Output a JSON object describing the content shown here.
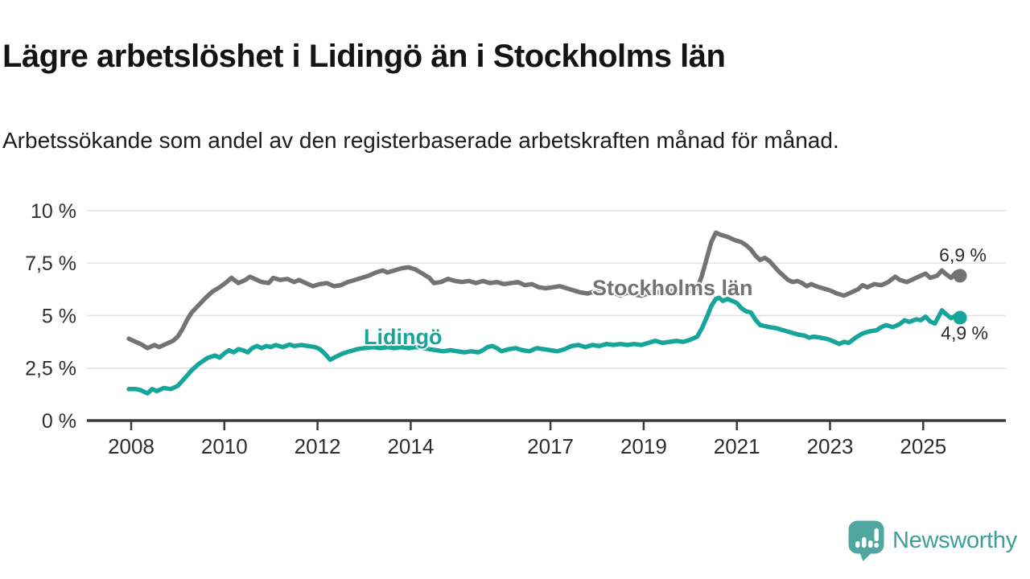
{
  "header": {
    "title": "Lägre arbetslöshet i Lidingö än i Stockholms län",
    "subtitle": "Arbetssökande som andel av den registerbaserade arbetskraften månad för månad."
  },
  "footer": {
    "brand": "Newsworthy",
    "logo_icon": "speech-bubble-bar-chart",
    "logo_bubble_color": "#4fa7a0",
    "wordmark_color": "#3f9e99"
  },
  "chart_data": {
    "type": "line",
    "title": "Lägre arbetslöshet i Lidingö än i Stockholms län",
    "subtitle": "Arbetssökande som andel av den registerbaserade arbetskraften månad för månad.",
    "grid_color": "#e2e2e2",
    "axis_color": "#3b3b3b",
    "tick_text_color": "#2e2e2e",
    "legend_position": "inline-labels-on-lines",
    "x_axis": {
      "range": [
        2007.1,
        2026.8
      ],
      "grid": false,
      "ticks": [
        {
          "v": 2008,
          "label": "2008"
        },
        {
          "v": 2010,
          "label": "2010"
        },
        {
          "v": 2012,
          "label": "2012"
        },
        {
          "v": 2014,
          "label": "2014"
        },
        {
          "v": 2017,
          "label": "2017"
        },
        {
          "v": 2019,
          "label": "2019"
        },
        {
          "v": 2021,
          "label": "2021"
        },
        {
          "v": 2023,
          "label": "2023"
        },
        {
          "v": 2025,
          "label": "2025"
        }
      ]
    },
    "y_axis": {
      "range": [
        0,
        10
      ],
      "grid": true,
      "unit": "%",
      "ticks": [
        {
          "v": 0,
          "label": "0 %"
        },
        {
          "v": 2.5,
          "label": "2,5 %"
        },
        {
          "v": 5,
          "label": "5 %"
        },
        {
          "v": 7.5,
          "label": "7,5 %"
        },
        {
          "v": 10,
          "label": "10 %"
        }
      ]
    },
    "series": [
      {
        "id": "stockholms-lan",
        "name": "Stockholms län",
        "color": "#737373",
        "end_label": "6,9 %",
        "end_value": 6.9,
        "points": [
          [
            2007.95,
            3.9
          ],
          [
            2008.1,
            3.75
          ],
          [
            2008.2,
            3.65
          ],
          [
            2008.35,
            3.45
          ],
          [
            2008.5,
            3.6
          ],
          [
            2008.6,
            3.5
          ],
          [
            2008.75,
            3.65
          ],
          [
            2008.9,
            3.8
          ],
          [
            2009.0,
            4.0
          ],
          [
            2009.1,
            4.35
          ],
          [
            2009.2,
            4.8
          ],
          [
            2009.3,
            5.15
          ],
          [
            2009.45,
            5.5
          ],
          [
            2009.6,
            5.85
          ],
          [
            2009.75,
            6.15
          ],
          [
            2009.9,
            6.35
          ],
          [
            2010.05,
            6.6
          ],
          [
            2010.15,
            6.8
          ],
          [
            2010.3,
            6.55
          ],
          [
            2010.45,
            6.7
          ],
          [
            2010.55,
            6.85
          ],
          [
            2010.65,
            6.75
          ],
          [
            2010.8,
            6.6
          ],
          [
            2010.95,
            6.55
          ],
          [
            2011.05,
            6.8
          ],
          [
            2011.2,
            6.7
          ],
          [
            2011.35,
            6.75
          ],
          [
            2011.5,
            6.6
          ],
          [
            2011.6,
            6.7
          ],
          [
            2011.75,
            6.55
          ],
          [
            2011.9,
            6.4
          ],
          [
            2012.05,
            6.5
          ],
          [
            2012.2,
            6.55
          ],
          [
            2012.35,
            6.4
          ],
          [
            2012.5,
            6.45
          ],
          [
            2012.65,
            6.6
          ],
          [
            2012.8,
            6.7
          ],
          [
            2012.95,
            6.8
          ],
          [
            2013.1,
            6.9
          ],
          [
            2013.25,
            7.05
          ],
          [
            2013.4,
            7.15
          ],
          [
            2013.5,
            7.05
          ],
          [
            2013.65,
            7.15
          ],
          [
            2013.8,
            7.25
          ],
          [
            2013.95,
            7.3
          ],
          [
            2014.1,
            7.2
          ],
          [
            2014.25,
            7.0
          ],
          [
            2014.4,
            6.8
          ],
          [
            2014.5,
            6.55
          ],
          [
            2014.65,
            6.6
          ],
          [
            2014.8,
            6.75
          ],
          [
            2014.95,
            6.65
          ],
          [
            2015.1,
            6.6
          ],
          [
            2015.25,
            6.65
          ],
          [
            2015.4,
            6.55
          ],
          [
            2015.55,
            6.65
          ],
          [
            2015.7,
            6.55
          ],
          [
            2015.85,
            6.6
          ],
          [
            2016.0,
            6.5
          ],
          [
            2016.15,
            6.55
          ],
          [
            2016.3,
            6.6
          ],
          [
            2016.45,
            6.45
          ],
          [
            2016.6,
            6.5
          ],
          [
            2016.75,
            6.35
          ],
          [
            2016.9,
            6.3
          ],
          [
            2017.05,
            6.35
          ],
          [
            2017.2,
            6.4
          ],
          [
            2017.35,
            6.3
          ],
          [
            2017.5,
            6.2
          ],
          [
            2017.65,
            6.1
          ],
          [
            2017.8,
            6.05
          ],
          [
            2017.95,
            6.15
          ],
          [
            2018.1,
            6.1
          ],
          [
            2018.25,
            6.2
          ],
          [
            2018.4,
            6.05
          ],
          [
            2018.5,
            5.95
          ],
          [
            2018.65,
            6.1
          ],
          [
            2018.8,
            6.0
          ],
          [
            2018.95,
            5.95
          ],
          [
            2019.1,
            6.05
          ],
          [
            2019.25,
            6.15
          ],
          [
            2019.4,
            6.05
          ],
          [
            2019.55,
            6.2
          ],
          [
            2019.7,
            6.1
          ],
          [
            2019.85,
            6.2
          ],
          [
            2020.0,
            6.15
          ],
          [
            2020.15,
            6.3
          ],
          [
            2020.25,
            6.9
          ],
          [
            2020.35,
            7.7
          ],
          [
            2020.45,
            8.5
          ],
          [
            2020.55,
            8.95
          ],
          [
            2020.65,
            8.85
          ],
          [
            2020.8,
            8.75
          ],
          [
            2020.95,
            8.6
          ],
          [
            2021.1,
            8.5
          ],
          [
            2021.2,
            8.35
          ],
          [
            2021.3,
            8.15
          ],
          [
            2021.4,
            7.85
          ],
          [
            2021.5,
            7.65
          ],
          [
            2021.6,
            7.75
          ],
          [
            2021.7,
            7.6
          ],
          [
            2021.8,
            7.35
          ],
          [
            2021.9,
            7.1
          ],
          [
            2022.0,
            6.9
          ],
          [
            2022.1,
            6.7
          ],
          [
            2022.2,
            6.6
          ],
          [
            2022.3,
            6.65
          ],
          [
            2022.4,
            6.55
          ],
          [
            2022.5,
            6.4
          ],
          [
            2022.6,
            6.5
          ],
          [
            2022.7,
            6.4
          ],
          [
            2022.85,
            6.3
          ],
          [
            2023.0,
            6.2
          ],
          [
            2023.15,
            6.05
          ],
          [
            2023.3,
            5.95
          ],
          [
            2023.45,
            6.1
          ],
          [
            2023.6,
            6.25
          ],
          [
            2023.7,
            6.45
          ],
          [
            2023.8,
            6.35
          ],
          [
            2023.95,
            6.5
          ],
          [
            2024.1,
            6.45
          ],
          [
            2024.25,
            6.6
          ],
          [
            2024.4,
            6.85
          ],
          [
            2024.5,
            6.7
          ],
          [
            2024.65,
            6.6
          ],
          [
            2024.8,
            6.75
          ],
          [
            2024.95,
            6.9
          ],
          [
            2025.05,
            7.0
          ],
          [
            2025.15,
            6.8
          ],
          [
            2025.3,
            6.9
          ],
          [
            2025.4,
            7.15
          ],
          [
            2025.5,
            6.95
          ],
          [
            2025.6,
            6.8
          ],
          [
            2025.7,
            7.05
          ],
          [
            2025.79,
            6.9
          ]
        ]
      },
      {
        "id": "lidingo",
        "name": "Lidingö",
        "color": "#16a59a",
        "end_label": "4,9 %",
        "end_value": 4.9,
        "points": [
          [
            2007.95,
            1.5
          ],
          [
            2008.1,
            1.5
          ],
          [
            2008.2,
            1.45
          ],
          [
            2008.35,
            1.3
          ],
          [
            2008.45,
            1.5
          ],
          [
            2008.55,
            1.4
          ],
          [
            2008.7,
            1.55
          ],
          [
            2008.85,
            1.5
          ],
          [
            2009.0,
            1.65
          ],
          [
            2009.1,
            1.9
          ],
          [
            2009.2,
            2.15
          ],
          [
            2009.3,
            2.4
          ],
          [
            2009.45,
            2.7
          ],
          [
            2009.55,
            2.85
          ],
          [
            2009.65,
            3.0
          ],
          [
            2009.8,
            3.1
          ],
          [
            2009.9,
            3.0
          ],
          [
            2010.0,
            3.2
          ],
          [
            2010.1,
            3.35
          ],
          [
            2010.2,
            3.25
          ],
          [
            2010.3,
            3.4
          ],
          [
            2010.4,
            3.35
          ],
          [
            2010.5,
            3.25
          ],
          [
            2010.6,
            3.45
          ],
          [
            2010.7,
            3.55
          ],
          [
            2010.8,
            3.45
          ],
          [
            2010.9,
            3.55
          ],
          [
            2011.0,
            3.5
          ],
          [
            2011.1,
            3.6
          ],
          [
            2011.25,
            3.5
          ],
          [
            2011.4,
            3.62
          ],
          [
            2011.5,
            3.55
          ],
          [
            2011.65,
            3.6
          ],
          [
            2011.8,
            3.55
          ],
          [
            2011.95,
            3.5
          ],
          [
            2012.05,
            3.4
          ],
          [
            2012.15,
            3.2
          ],
          [
            2012.27,
            2.9
          ],
          [
            2012.4,
            3.05
          ],
          [
            2012.55,
            3.2
          ],
          [
            2012.7,
            3.3
          ],
          [
            2012.85,
            3.4
          ],
          [
            2013.0,
            3.45
          ],
          [
            2013.2,
            3.5
          ],
          [
            2013.35,
            3.45
          ],
          [
            2013.5,
            3.5
          ],
          [
            2013.65,
            3.45
          ],
          [
            2013.8,
            3.5
          ],
          [
            2013.95,
            3.45
          ],
          [
            2014.1,
            3.5
          ],
          [
            2014.25,
            3.45
          ],
          [
            2014.4,
            3.4
          ],
          [
            2014.55,
            3.35
          ],
          [
            2014.7,
            3.3
          ],
          [
            2014.85,
            3.35
          ],
          [
            2015.0,
            3.3
          ],
          [
            2015.15,
            3.25
          ],
          [
            2015.3,
            3.3
          ],
          [
            2015.45,
            3.25
          ],
          [
            2015.55,
            3.35
          ],
          [
            2015.65,
            3.5
          ],
          [
            2015.75,
            3.55
          ],
          [
            2015.85,
            3.45
          ],
          [
            2015.95,
            3.3
          ],
          [
            2016.1,
            3.4
          ],
          [
            2016.25,
            3.45
          ],
          [
            2016.4,
            3.35
          ],
          [
            2016.55,
            3.3
          ],
          [
            2016.7,
            3.45
          ],
          [
            2016.85,
            3.4
          ],
          [
            2017.0,
            3.35
          ],
          [
            2017.15,
            3.3
          ],
          [
            2017.3,
            3.4
          ],
          [
            2017.45,
            3.55
          ],
          [
            2017.6,
            3.6
          ],
          [
            2017.75,
            3.5
          ],
          [
            2017.9,
            3.6
          ],
          [
            2018.05,
            3.55
          ],
          [
            2018.2,
            3.65
          ],
          [
            2018.35,
            3.6
          ],
          [
            2018.5,
            3.65
          ],
          [
            2018.65,
            3.6
          ],
          [
            2018.8,
            3.65
          ],
          [
            2018.95,
            3.6
          ],
          [
            2019.1,
            3.7
          ],
          [
            2019.25,
            3.8
          ],
          [
            2019.4,
            3.7
          ],
          [
            2019.55,
            3.75
          ],
          [
            2019.7,
            3.8
          ],
          [
            2019.85,
            3.75
          ],
          [
            2020.0,
            3.85
          ],
          [
            2020.15,
            4.0
          ],
          [
            2020.25,
            4.4
          ],
          [
            2020.35,
            4.9
          ],
          [
            2020.45,
            5.45
          ],
          [
            2020.55,
            5.8
          ],
          [
            2020.62,
            5.85
          ],
          [
            2020.7,
            5.7
          ],
          [
            2020.8,
            5.8
          ],
          [
            2020.9,
            5.7
          ],
          [
            2021.0,
            5.6
          ],
          [
            2021.1,
            5.35
          ],
          [
            2021.2,
            5.2
          ],
          [
            2021.3,
            5.15
          ],
          [
            2021.4,
            4.8
          ],
          [
            2021.5,
            4.55
          ],
          [
            2021.6,
            4.5
          ],
          [
            2021.7,
            4.45
          ],
          [
            2021.85,
            4.4
          ],
          [
            2022.0,
            4.3
          ],
          [
            2022.15,
            4.2
          ],
          [
            2022.3,
            4.1
          ],
          [
            2022.45,
            4.05
          ],
          [
            2022.55,
            3.95
          ],
          [
            2022.65,
            4.0
          ],
          [
            2022.8,
            3.95
          ],
          [
            2022.95,
            3.88
          ],
          [
            2023.1,
            3.75
          ],
          [
            2023.2,
            3.65
          ],
          [
            2023.3,
            3.75
          ],
          [
            2023.4,
            3.7
          ],
          [
            2023.55,
            3.95
          ],
          [
            2023.7,
            4.15
          ],
          [
            2023.85,
            4.25
          ],
          [
            2024.0,
            4.3
          ],
          [
            2024.1,
            4.45
          ],
          [
            2024.2,
            4.55
          ],
          [
            2024.35,
            4.45
          ],
          [
            2024.5,
            4.6
          ],
          [
            2024.6,
            4.78
          ],
          [
            2024.7,
            4.7
          ],
          [
            2024.85,
            4.82
          ],
          [
            2024.95,
            4.78
          ],
          [
            2025.05,
            4.95
          ],
          [
            2025.15,
            4.72
          ],
          [
            2025.25,
            4.62
          ],
          [
            2025.4,
            5.25
          ],
          [
            2025.5,
            5.05
          ],
          [
            2025.6,
            4.88
          ],
          [
            2025.7,
            5.0
          ],
          [
            2025.79,
            4.9
          ]
        ]
      }
    ]
  }
}
